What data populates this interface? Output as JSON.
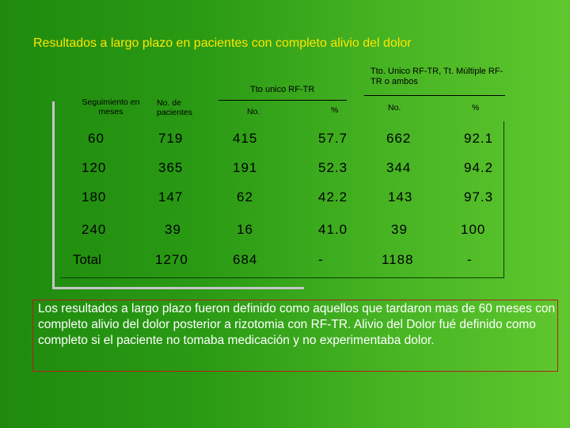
{
  "title": "Resultados a largo plazo en pacientes con completo alivio del dolor",
  "group_headers": {
    "rf_tr_only": "Tto unico RF-TR",
    "combined": "Tto. Unico RF-TR, Tt. Múltiple RF-TR o ambos"
  },
  "columns": {
    "follow_up": "Seguimiento en meses",
    "patients": "No. de pacientes",
    "rf_no": "No.",
    "rf_pct": "%",
    "comb_no": "No.",
    "comb_pct": "%"
  },
  "rows": [
    {
      "follow_up": "60",
      "patients": "719",
      "rf_no": "415",
      "rf_pct": "57.7",
      "comb_no": "662",
      "comb_pct": "92.1"
    },
    {
      "follow_up": "120",
      "patients": "365",
      "rf_no": "191",
      "rf_pct": "52.3",
      "comb_no": "344",
      "comb_pct": "94.2"
    },
    {
      "follow_up": "180",
      "patients": "147",
      "rf_no": "62",
      "rf_pct": "42.2",
      "comb_no": "143",
      "comb_pct": "97.3"
    },
    {
      "follow_up": "240",
      "patients": "39",
      "rf_no": "16",
      "rf_pct": "41.0",
      "comb_no": "39",
      "comb_pct": "100"
    },
    {
      "follow_up": "Total",
      "patients": "1270",
      "rf_no": "684",
      "rf_pct": "-",
      "comb_no": "1188",
      "comb_pct": "-"
    }
  ],
  "note": "Los resultados a largo plazo fueron definido como aquellos que tardaron mas de 60 meses con completo alivio del dolor posterior a rizotomia con RF-TR. Alivio del Dolor fué definido como completo si el paciente no tomaba medicación y no experimentaba dolor.",
  "colors": {
    "title": "#ffe600",
    "note_text": "#ffffff",
    "note_border": "#b0221c",
    "shadow": "#c6c6c6"
  }
}
